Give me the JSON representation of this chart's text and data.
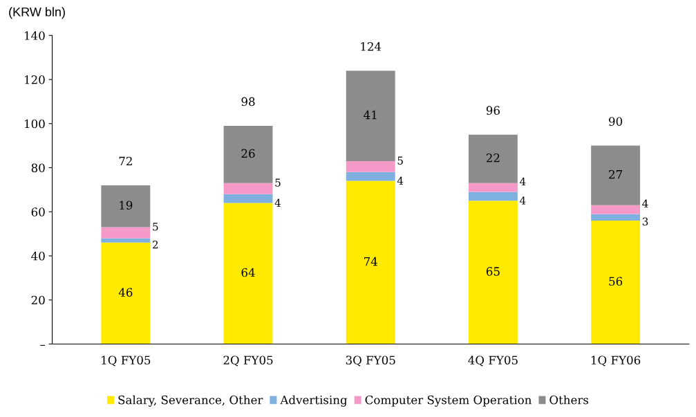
{
  "chart_data": {
    "type": "bar",
    "stacked": true,
    "ylabel": "(KRW bln)",
    "categories": [
      "1Q FY05",
      "2Q FY05",
      "3Q FY05",
      "4Q FY05",
      "1Q FY06"
    ],
    "series": [
      {
        "name": "Salary, Severance, Other",
        "color": "#ffea00",
        "values": [
          46,
          64,
          74,
          65,
          56
        ]
      },
      {
        "name": "Advertising",
        "color": "#7eb0e0",
        "values": [
          2,
          4,
          4,
          4,
          3
        ]
      },
      {
        "name": "Computer System Operation",
        "color": "#f59ac8",
        "values": [
          5,
          5,
          5,
          4,
          4
        ]
      },
      {
        "name": "Others",
        "color": "#8c8c8c",
        "values": [
          19,
          26,
          41,
          22,
          27
        ]
      }
    ],
    "totals": [
      "72",
      "98",
      "124",
      "96",
      "90"
    ],
    "data_labels": true,
    "ylim": [
      0,
      140
    ],
    "yticks": [
      {
        "value": 0,
        "label": "–"
      },
      20,
      40,
      60,
      80,
      100,
      120,
      140
    ],
    "grid": false,
    "legend": "bottom"
  }
}
